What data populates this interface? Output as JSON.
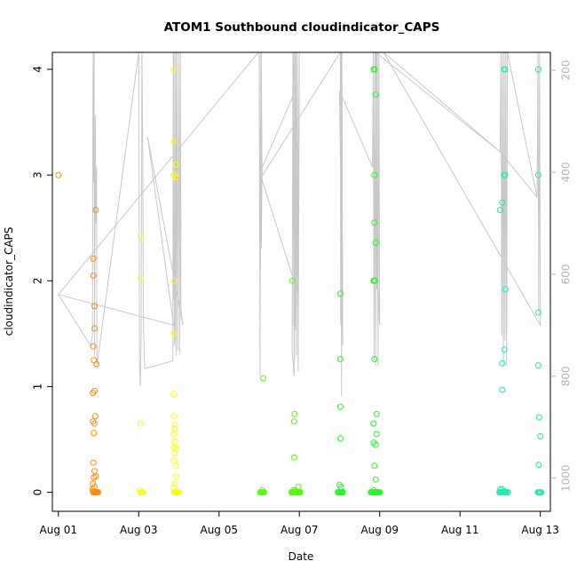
{
  "chart_data": {
    "type": "scatter",
    "title": "ATOM1 Southbound cloudindicator_CAPS",
    "xlabel": "Date",
    "ylabel": "cloudindicator_CAPS",
    "x_ticks": [
      "Aug 01",
      "Aug 03",
      "Aug 05",
      "Aug 07",
      "Aug 09",
      "Aug 11",
      "Aug 13"
    ],
    "xlim_days": [
      0.85,
      13.25
    ],
    "ylim": [
      -0.18,
      4.16
    ],
    "y_ticks": [
      0,
      1,
      2,
      3,
      4
    ],
    "y2lim": [
      1065,
      165
    ],
    "y2_ticks": [
      200,
      400,
      600,
      800,
      1000
    ],
    "grid": false,
    "legend": "none",
    "series": [
      {
        "color": "#FF8C00",
        "points": [
          [
            1.0,
            3.0
          ],
          [
            1.87,
            2.21
          ],
          [
            1.87,
            2.05
          ],
          [
            1.9,
            1.76
          ],
          [
            1.93,
            2.67
          ],
          [
            1.9,
            1.55
          ],
          [
            1.87,
            1.38
          ],
          [
            1.88,
            1.25
          ],
          [
            1.95,
            1.21
          ],
          [
            1.86,
            0.94
          ],
          [
            1.9,
            0.96
          ],
          [
            1.86,
            0.67
          ],
          [
            1.92,
            0.72
          ],
          [
            1.9,
            0.65
          ],
          [
            1.88,
            0.56
          ],
          [
            1.87,
            0.28
          ],
          [
            1.9,
            0.2
          ],
          [
            1.88,
            0.14
          ],
          [
            1.93,
            0.15
          ],
          [
            1.86,
            0.08
          ],
          [
            1.9,
            0.05
          ],
          [
            1.85,
            0.03
          ],
          [
            1.87,
            0.0
          ],
          [
            1.89,
            0.0
          ],
          [
            1.91,
            0.0
          ],
          [
            1.93,
            0.0
          ],
          [
            1.95,
            0.0
          ],
          [
            1.97,
            0.0
          ],
          [
            1.99,
            0.0
          ],
          [
            1.86,
            0.01
          ]
        ]
      },
      {
        "color": "#FFFF00",
        "points": [
          [
            3.05,
            2.42
          ],
          [
            3.05,
            2.02
          ],
          [
            3.05,
            0.65
          ],
          [
            3.03,
            0.02
          ],
          [
            3.05,
            0.0
          ],
          [
            3.07,
            0.0
          ],
          [
            3.09,
            0.0
          ],
          [
            3.11,
            0.0
          ],
          [
            3.87,
            4.0
          ],
          [
            3.87,
            3.32
          ],
          [
            3.87,
            3.0
          ],
          [
            3.92,
            3.1
          ],
          [
            3.92,
            2.98
          ],
          [
            3.87,
            2.0
          ],
          [
            3.87,
            1.5
          ],
          [
            3.87,
            0.93
          ],
          [
            3.87,
            0.72
          ],
          [
            3.9,
            0.64
          ],
          [
            3.9,
            0.6
          ],
          [
            3.87,
            0.55
          ],
          [
            3.9,
            0.48
          ],
          [
            3.87,
            0.43
          ],
          [
            3.93,
            0.42
          ],
          [
            3.9,
            0.37
          ],
          [
            3.87,
            0.3
          ],
          [
            3.93,
            0.25
          ],
          [
            3.93,
            0.15
          ],
          [
            3.9,
            0.08
          ],
          [
            3.87,
            0.04
          ],
          [
            3.88,
            0.0
          ],
          [
            3.9,
            0.0
          ],
          [
            3.92,
            0.0
          ],
          [
            3.94,
            0.0
          ],
          [
            3.96,
            0.0
          ],
          [
            3.98,
            0.0
          ],
          [
            4.0,
            0.0
          ]
        ]
      },
      {
        "color": "#55FF00",
        "points": [
          [
            6.1,
            1.08
          ],
          [
            6.08,
            0.02
          ],
          [
            6.02,
            0.0
          ],
          [
            6.04,
            0.0
          ],
          [
            6.06,
            0.0
          ],
          [
            6.08,
            0.0
          ],
          [
            6.1,
            0.0
          ],
          [
            6.12,
            0.0
          ],
          [
            6.83,
            2.0
          ],
          [
            6.88,
            0.74
          ],
          [
            6.87,
            0.67
          ],
          [
            6.87,
            0.33
          ],
          [
            6.85,
            0.02
          ],
          [
            6.97,
            0.05
          ],
          [
            6.8,
            0.0
          ],
          [
            6.82,
            0.0
          ],
          [
            6.84,
            0.0
          ],
          [
            6.86,
            0.0
          ],
          [
            6.88,
            0.0
          ],
          [
            6.9,
            0.0
          ],
          [
            6.92,
            0.0
          ],
          [
            6.94,
            0.0
          ],
          [
            6.96,
            0.0
          ],
          [
            6.98,
            0.0
          ],
          [
            7.0,
            0.0
          ],
          [
            7.02,
            0.0
          ],
          [
            6.9,
            0.02
          ]
        ]
      },
      {
        "color": "#1EFF1E",
        "points": [
          [
            8.02,
            1.88
          ],
          [
            8.02,
            1.26
          ],
          [
            8.02,
            0.81
          ],
          [
            8.02,
            0.51
          ],
          [
            8.0,
            0.07
          ],
          [
            8.04,
            0.05
          ],
          [
            7.96,
            0.0
          ],
          [
            7.98,
            0.0
          ],
          [
            8.0,
            0.0
          ],
          [
            8.02,
            0.0
          ],
          [
            8.04,
            0.0
          ],
          [
            8.06,
            0.0
          ],
          [
            8.08,
            0.0
          ],
          [
            8.85,
            4.0
          ],
          [
            8.88,
            4.0
          ],
          [
            8.9,
            3.76
          ],
          [
            8.87,
            3.0
          ],
          [
            8.87,
            2.55
          ],
          [
            8.9,
            2.36
          ],
          [
            8.85,
            2.0
          ],
          [
            8.87,
            2.0
          ],
          [
            8.88,
            2.0
          ],
          [
            8.87,
            1.26
          ],
          [
            8.92,
            0.74
          ],
          [
            8.85,
            0.65
          ],
          [
            8.92,
            0.55
          ],
          [
            8.85,
            0.47
          ],
          [
            8.9,
            0.45
          ],
          [
            8.87,
            0.25
          ],
          [
            8.9,
            0.12
          ],
          [
            8.85,
            0.02
          ],
          [
            8.78,
            0.0
          ],
          [
            8.8,
            0.0
          ],
          [
            8.82,
            0.0
          ],
          [
            8.84,
            0.0
          ],
          [
            8.86,
            0.0
          ],
          [
            8.88,
            0.0
          ],
          [
            8.9,
            0.0
          ],
          [
            8.92,
            0.0
          ],
          [
            8.94,
            0.0
          ],
          [
            8.96,
            0.0
          ],
          [
            8.98,
            0.0
          ],
          [
            9.0,
            0.0
          ]
        ]
      },
      {
        "color": "#1AEFB0",
        "points": [
          [
            12.1,
            4.0
          ],
          [
            12.12,
            4.0
          ],
          [
            12.1,
            3.0
          ],
          [
            12.12,
            3.0
          ],
          [
            12.05,
            2.74
          ],
          [
            12.0,
            2.67
          ],
          [
            12.13,
            1.92
          ],
          [
            12.1,
            1.35
          ],
          [
            12.05,
            1.22
          ],
          [
            12.05,
            0.97
          ],
          [
            12.0,
            0.03
          ],
          [
            12.05,
            0.03
          ],
          [
            12.1,
            0.01
          ],
          [
            11.98,
            0.0
          ],
          [
            12.0,
            0.0
          ],
          [
            12.02,
            0.0
          ],
          [
            12.04,
            0.0
          ],
          [
            12.06,
            0.0
          ],
          [
            12.08,
            0.0
          ],
          [
            12.1,
            0.0
          ],
          [
            12.12,
            0.0
          ],
          [
            12.14,
            0.0
          ],
          [
            12.16,
            0.0
          ],
          [
            12.2,
            0.0
          ],
          [
            12.95,
            4.0
          ],
          [
            12.95,
            3.0
          ],
          [
            12.95,
            1.7
          ],
          [
            12.95,
            1.2
          ],
          [
            12.97,
            0.71
          ],
          [
            13.0,
            0.53
          ],
          [
            12.96,
            0.26
          ],
          [
            12.94,
            0.0
          ],
          [
            12.96,
            0.0
          ],
          [
            12.98,
            0.0
          ],
          [
            13.0,
            0.0
          ],
          [
            13.02,
            0.0
          ]
        ]
      }
    ],
    "right_axis_line": {
      "color": "#c8c8c8",
      "points": [
        [
          1.0,
          640
        ],
        [
          1.8,
          740
        ],
        [
          1.85,
          720
        ],
        [
          1.86,
          230
        ],
        [
          1.87,
          165
        ],
        [
          1.88,
          420
        ],
        [
          1.89,
          165
        ],
        [
          1.9,
          760
        ],
        [
          1.92,
          290
        ],
        [
          1.93,
          500
        ],
        [
          1.95,
          390
        ],
        [
          1.96,
          780
        ],
        [
          3.0,
          165
        ],
        [
          3.02,
          780
        ],
        [
          3.04,
          820
        ],
        [
          3.06,
          720
        ],
        [
          3.08,
          165
        ],
        [
          3.1,
          355
        ],
        [
          3.12,
          710
        ],
        [
          3.15,
          785
        ],
        [
          3.85,
          770
        ],
        [
          3.86,
          165
        ],
        [
          3.87,
          650
        ],
        [
          3.88,
          165
        ],
        [
          3.89,
          740
        ],
        [
          3.9,
          730
        ],
        [
          3.92,
          165
        ],
        [
          3.93,
          760
        ],
        [
          3.95,
          165
        ],
        [
          3.97,
          750
        ],
        [
          4.0,
          165
        ],
        [
          4.02,
          755
        ],
        [
          4.04,
          165
        ],
        [
          4.05,
          670
        ],
        [
          4.1,
          700
        ],
        [
          3.22,
          330
        ],
        [
          3.87,
          700
        ],
        [
          1.0,
          640
        ],
        [
          5.98,
          165
        ],
        [
          6.0,
          165
        ],
        [
          6.02,
          800
        ],
        [
          6.04,
          165
        ],
        [
          6.05,
          550
        ],
        [
          6.07,
          395
        ],
        [
          6.05,
          165
        ],
        [
          6.02,
          400
        ],
        [
          6.9,
          240
        ],
        [
          6.85,
          165
        ],
        [
          6.86,
          700
        ],
        [
          6.84,
          165
        ],
        [
          6.82,
          750
        ],
        [
          6.87,
          800
        ],
        [
          6.86,
          165
        ],
        [
          6.88,
          770
        ],
        [
          6.89,
          165
        ],
        [
          6.9,
          710
        ],
        [
          6.92,
          165
        ],
        [
          6.93,
          760
        ],
        [
          6.95,
          165
        ],
        [
          6.97,
          790
        ],
        [
          7.0,
          165
        ],
        [
          6.95,
          635
        ],
        [
          6.05,
          410
        ],
        [
          8.02,
          165
        ],
        [
          8.03,
          700
        ],
        [
          8.04,
          165
        ],
        [
          8.05,
          840
        ],
        [
          8.06,
          165
        ],
        [
          8.08,
          740
        ],
        [
          8.0,
          240
        ],
        [
          8.82,
          390
        ],
        [
          8.84,
          165
        ],
        [
          8.86,
          770
        ],
        [
          8.88,
          165
        ],
        [
          8.9,
          780
        ],
        [
          8.92,
          165
        ],
        [
          8.93,
          630
        ],
        [
          8.94,
          165
        ],
        [
          8.96,
          780
        ],
        [
          8.98,
          165
        ],
        [
          9.0,
          700
        ],
        [
          8.86,
          410
        ],
        [
          8.9,
          165
        ],
        [
          12.0,
          360
        ],
        [
          12.02,
          165
        ],
        [
          12.04,
          720
        ],
        [
          12.06,
          165
        ],
        [
          12.08,
          780
        ],
        [
          12.1,
          165
        ],
        [
          12.12,
          730
        ],
        [
          12.14,
          165
        ],
        [
          12.16,
          780
        ],
        [
          12.18,
          165
        ],
        [
          12.92,
          450
        ],
        [
          12.94,
          165
        ],
        [
          12.96,
          680
        ],
        [
          12.98,
          165
        ],
        [
          13.0,
          700
        ],
        [
          9.1,
          165
        ],
        [
          12.0,
          360
        ],
        [
          12.93,
          450
        ]
      ]
    }
  }
}
